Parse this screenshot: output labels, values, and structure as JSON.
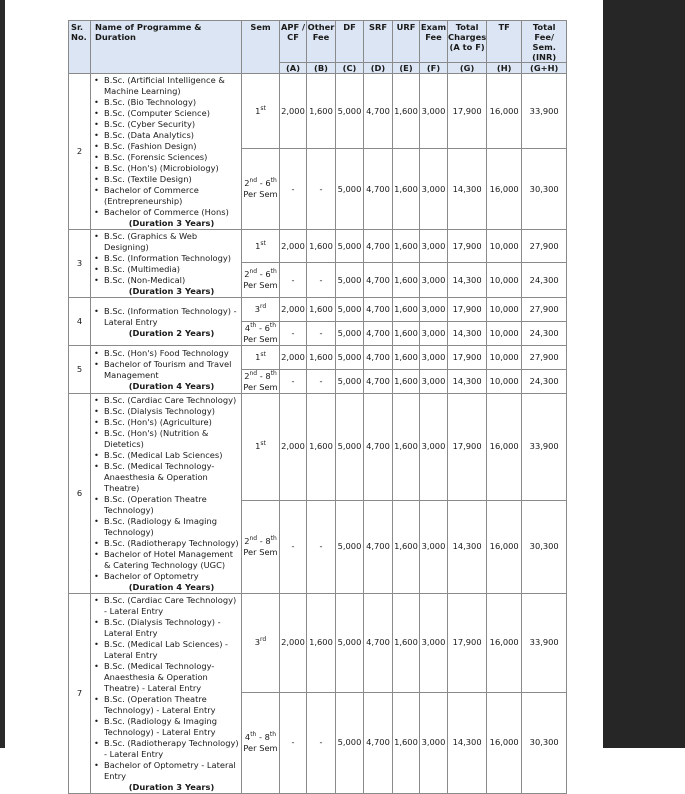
{
  "header": {
    "sr": "Sr. No.",
    "name": "Name of Programme & Duration",
    "sem": "Sem",
    "columns": [
      {
        "label": "APF / CF",
        "code": "(A)"
      },
      {
        "label": "Other Fee",
        "code": "(B)"
      },
      {
        "label": "DF",
        "code": "(C)"
      },
      {
        "label": "SRF",
        "code": "(D)"
      },
      {
        "label": "URF",
        "code": "(E)"
      },
      {
        "label": "Exam Fee",
        "code": "(F)"
      },
      {
        "label": "Total Charges (A to F)",
        "code": "(G)"
      },
      {
        "label": "TF",
        "code": "(H)"
      },
      {
        "label": "Total Fee/ Sem. (INR)",
        "code": "(G+H)"
      }
    ]
  },
  "rows": [
    {
      "sr": "2",
      "programmes": [
        "B.Sc. (Artificial Intelligence & Machine Learning)",
        "B.Sc. (Bio Technology)",
        "B.Sc. (Computer Science)",
        "B.Sc. (Cyber Security)",
        "B.Sc. (Data Analytics)",
        "B.Sc. (Fashion Design)",
        "B.Sc. (Forensic Sciences)",
        "B.Sc. (Hon's) (Microbiology)",
        "B.Sc. (Textile Design)",
        "Bachelor of Commerce (Entrepreneurship)",
        "Bachelor of Commerce (Hons)"
      ],
      "duration": "(Duration 3 Years)",
      "fees": [
        {
          "sem": [
            [
              "1",
              "st"
            ]
          ],
          "per_sem": "",
          "values": [
            "2,000",
            "1,600",
            "5,000",
            "4,700",
            "1,600",
            "3,000",
            "17,900",
            "16,000",
            "33,900"
          ]
        },
        {
          "sem": [
            [
              "2",
              "nd"
            ],
            [
              "6",
              "th"
            ]
          ],
          "per_sem": "Per Sem",
          "values": [
            "-",
            "-",
            "5,000",
            "4,700",
            "1,600",
            "3,000",
            "14,300",
            "16,000",
            "30,300"
          ]
        }
      ]
    },
    {
      "sr": "3",
      "programmes": [
        "B.Sc. (Graphics & Web Designing)",
        "B.Sc. (Information Technology)",
        "B.Sc. (Multimedia)",
        "B.Sc. (Non-Medical)"
      ],
      "duration": "(Duration 3 Years)",
      "fees": [
        {
          "sem": [
            [
              "1",
              "st"
            ]
          ],
          "per_sem": "",
          "values": [
            "2,000",
            "1,600",
            "5,000",
            "4,700",
            "1,600",
            "3,000",
            "17,900",
            "10,000",
            "27,900"
          ]
        },
        {
          "sem": [
            [
              "2",
              "nd"
            ],
            [
              "6",
              "th"
            ]
          ],
          "per_sem": "Per Sem",
          "values": [
            "-",
            "-",
            "5,000",
            "4,700",
            "1,600",
            "3,000",
            "14,300",
            "10,000",
            "24,300"
          ]
        }
      ]
    },
    {
      "sr": "4",
      "programmes": [
        "B.Sc. (Information Technology) - Lateral Entry"
      ],
      "duration": "(Duration 2 Years)",
      "fees": [
        {
          "sem": [
            [
              "3",
              "rd"
            ]
          ],
          "per_sem": "",
          "values": [
            "2,000",
            "1,600",
            "5,000",
            "4,700",
            "1,600",
            "3,000",
            "17,900",
            "10,000",
            "27,900"
          ]
        },
        {
          "sem": [
            [
              "4",
              "th"
            ],
            [
              "6",
              "th"
            ]
          ],
          "per_sem": "Per Sem",
          "values": [
            "-",
            "-",
            "5,000",
            "4,700",
            "1,600",
            "3,000",
            "14,300",
            "10,000",
            "24,300"
          ]
        }
      ]
    },
    {
      "sr": "5",
      "programmes": [
        "B.Sc. (Hon's) Food Technology",
        "Bachelor of Tourism and Travel Management"
      ],
      "duration": "(Duration 4 Years)",
      "fees": [
        {
          "sem": [
            [
              "1",
              "st"
            ]
          ],
          "per_sem": "",
          "values": [
            "2,000",
            "1,600",
            "5,000",
            "4,700",
            "1,600",
            "3,000",
            "17,900",
            "10,000",
            "27,900"
          ]
        },
        {
          "sem": [
            [
              "2",
              "nd"
            ],
            [
              "8",
              "th"
            ]
          ],
          "per_sem": "Per Sem",
          "values": [
            "-",
            "-",
            "5,000",
            "4,700",
            "1,600",
            "3,000",
            "14,300",
            "10,000",
            "24,300"
          ]
        }
      ]
    },
    {
      "sr": "6",
      "programmes": [
        "B.Sc. (Cardiac Care Technology)",
        "B.Sc. (Dialysis Technology)",
        "B.Sc. (Hon's) (Agriculture)",
        "B.Sc. (Hon's) (Nutrition & Dietetics)",
        "B.Sc. (Medical Lab Sciences)",
        "B.Sc. (Medical Technology-Anaesthesia & Operation Theatre)",
        "B.Sc. (Operation Theatre Technology)",
        "B.Sc. (Radiology & Imaging Technology)",
        "B.Sc. (Radiotherapy Technology)",
        "Bachelor of Hotel Management & Catering Technology (UGC)",
        "Bachelor of Optometry"
      ],
      "duration": "(Duration 4 Years)",
      "fees": [
        {
          "sem": [
            [
              "1",
              "st"
            ]
          ],
          "per_sem": "",
          "values": [
            "2,000",
            "1,600",
            "5,000",
            "4,700",
            "1,600",
            "3,000",
            "17,900",
            "16,000",
            "33,900"
          ]
        },
        {
          "sem": [
            [
              "2",
              "nd"
            ],
            [
              "8",
              "th"
            ]
          ],
          "per_sem": "Per Sem",
          "values": [
            "-",
            "-",
            "5,000",
            "4,700",
            "1,600",
            "3,000",
            "14,300",
            "16,000",
            "30,300"
          ]
        }
      ]
    },
    {
      "sr": "7",
      "programmes": [
        "B.Sc. (Cardiac Care Technology) - Lateral Entry",
        "B.Sc. (Dialysis Technology) - Lateral Entry",
        "B.Sc. (Medical Lab Sciences) - Lateral Entry",
        "B.Sc. (Medical Technology-Anaesthesia & Operation Theatre) - Lateral Entry",
        "B.Sc. (Operation Theatre Technology) - Lateral Entry",
        "B.Sc. (Radiology & Imaging Technology) - Lateral Entry",
        "B.Sc. (Radiotherapy Technology) - Lateral Entry",
        "Bachelor of Optometry - Lateral Entry"
      ],
      "duration": "(Duration 3 Years)",
      "fees": [
        {
          "sem": [
            [
              "3",
              "rd"
            ]
          ],
          "per_sem": "",
          "values": [
            "2,000",
            "1,600",
            "5,000",
            "4,700",
            "1,600",
            "3,000",
            "17,900",
            "16,000",
            "33,900"
          ]
        },
        {
          "sem": [
            [
              "4",
              "th"
            ],
            [
              "8",
              "th"
            ]
          ],
          "per_sem": "Per Sem",
          "values": [
            "-",
            "-",
            "5,000",
            "4,700",
            "1,600",
            "3,000",
            "14,300",
            "16,000",
            "30,300"
          ]
        }
      ]
    }
  ]
}
